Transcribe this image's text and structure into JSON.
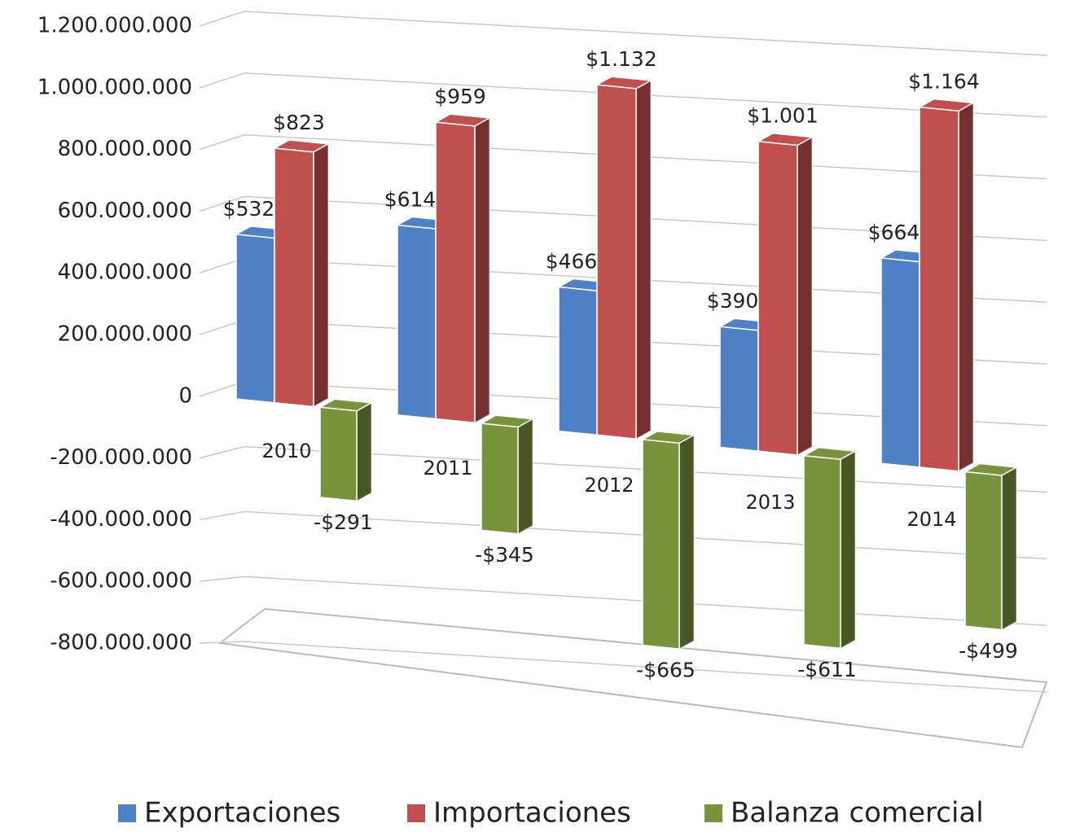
{
  "chart_data": {
    "type": "bar3d",
    "categories": [
      "2010",
      "2011",
      "2012",
      "2013",
      "2014"
    ],
    "series": [
      {
        "name": "Exportaciones",
        "color": "#4f81c7",
        "values": [
          532000000,
          614000000,
          466000000,
          390000000,
          664000000
        ],
        "value_labels": [
          "$532",
          "$614",
          "$466",
          "$390",
          "$664"
        ]
      },
      {
        "name": "Importaciones",
        "color": "#c0504d",
        "values": [
          823000000,
          959000000,
          1132000000,
          1001000000,
          1164000000
        ],
        "value_labels": [
          "$823",
          "$959",
          "$1.132",
          "$1.001",
          "$1.164"
        ]
      },
      {
        "name": "Balanza comercial",
        "color": "#77933c",
        "values": [
          -291000000,
          -345000000,
          -665000000,
          -611000000,
          -499000000
        ],
        "value_labels": [
          "-$291",
          "-$345",
          "-$665",
          "-$611",
          "-$499"
        ]
      }
    ],
    "ylim": [
      -800000000,
      1200000000
    ],
    "yticks": [
      {
        "value": -800000000,
        "label": "-800.000.000"
      },
      {
        "value": -600000000,
        "label": "-600.000.000"
      },
      {
        "value": -400000000,
        "label": "-400.000.000"
      },
      {
        "value": -200000000,
        "label": "-200.000.000"
      },
      0,
      {
        "value": 200000000,
        "label": "200.000.000"
      },
      {
        "value": 400000000,
        "label": "400.000.000"
      },
      {
        "value": 600000000,
        "label": "600.000.000"
      },
      {
        "value": 800000000,
        "label": "800.000.000"
      },
      {
        "value": 1000000000,
        "label": "1.000.000.000"
      },
      {
        "value": 1200000000,
        "label": "1.200.000.000"
      }
    ],
    "grid": true,
    "legend": "bottom"
  }
}
